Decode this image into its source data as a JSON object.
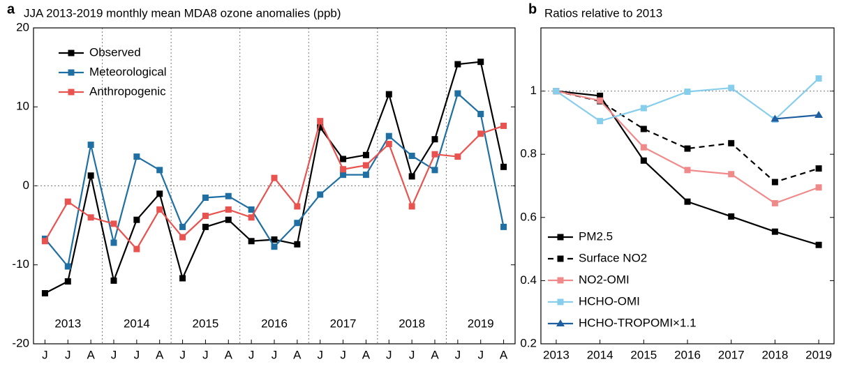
{
  "chart_data": [
    {
      "type": "line",
      "panel_label": "a",
      "title": "JJA 2013-2019 monthly mean MDA8 ozone anomalies (ppb)",
      "categories": [
        "J",
        "J",
        "A",
        "J",
        "J",
        "A",
        "J",
        "J",
        "A",
        "J",
        "J",
        "A",
        "J",
        "J",
        "A",
        "J",
        "J",
        "A",
        "J",
        "J",
        "A"
      ],
      "year_labels": [
        "2013",
        "2014",
        "2015",
        "2016",
        "2017",
        "2018",
        "2019"
      ],
      "ylim": [
        -20,
        20
      ],
      "yticks": [
        -20,
        -10,
        0,
        10,
        20
      ],
      "hline": 0,
      "legend": "upper left",
      "series": [
        {
          "name": "Observed",
          "color": "#000000",
          "values": [
            -13.6,
            -12.1,
            1.3,
            -12,
            -4.3,
            -1,
            -11.7,
            -5.2,
            -4.3,
            -7,
            -6.8,
            -7.4,
            7.4,
            3.4,
            3.9,
            11.6,
            1.2,
            5.9,
            15.4,
            15.7,
            2.4
          ]
        },
        {
          "name": "Meteorological",
          "color": "#1f6fa3",
          "values": [
            -6.7,
            -10.2,
            5.2,
            -7.2,
            3.7,
            2,
            -5.2,
            -1.5,
            -1.3,
            -3,
            -7.7,
            -4.7,
            -1.1,
            1.4,
            1.4,
            6.3,
            3.8,
            2,
            11.7,
            9.1,
            -5.2
          ]
        },
        {
          "name": "Anthropogenic",
          "color": "#e8524f",
          "values": [
            -7,
            -2,
            -4,
            -4.8,
            -8,
            -3,
            -6.5,
            -3.8,
            -3,
            -4,
            1,
            -2.6,
            8.2,
            2.1,
            2.6,
            5.3,
            -2.6,
            4,
            3.7,
            6.6,
            7.6
          ]
        }
      ]
    },
    {
      "type": "line",
      "panel_label": "b",
      "title": "Ratios relative to 2013",
      "x": [
        2013,
        2014,
        2015,
        2016,
        2017,
        2018,
        2019
      ],
      "xlim": [
        2012.65,
        2019.35
      ],
      "xticks": [
        2013,
        2014,
        2015,
        2016,
        2017,
        2018,
        2019
      ],
      "ylim": [
        0.2,
        1.2
      ],
      "yticks": [
        0.2,
        0.4,
        0.6,
        0.8,
        1
      ],
      "hline": 1,
      "legend": "lower left",
      "series": [
        {
          "name": "PM2.5",
          "color": "#000000",
          "marker": "square",
          "values": [
            1,
            0.985,
            0.78,
            0.65,
            0.603,
            0.555,
            0.513
          ]
        },
        {
          "name": "Surface NO2",
          "color": "#000000",
          "marker": "square",
          "dash": true,
          "values": [
            1,
            0.968,
            0.88,
            0.818,
            0.835,
            0.712,
            0.755
          ]
        },
        {
          "name": "NO2-OMI",
          "color": "#f08a8a",
          "marker": "square",
          "values": [
            1,
            0.97,
            0.822,
            0.75,
            0.737,
            0.645,
            0.695
          ]
        },
        {
          "name": "HCHO-OMI",
          "color": "#87cdec",
          "marker": "square",
          "values": [
            1,
            0.905,
            0.946,
            0.998,
            1.01,
            0.91,
            1.04
          ]
        },
        {
          "name": "HCHO-TROPOMI×1.1",
          "color": "#1f5f9f",
          "marker": "triangle",
          "values": [
            null,
            null,
            null,
            null,
            null,
            0.912,
            0.924
          ]
        }
      ]
    }
  ]
}
